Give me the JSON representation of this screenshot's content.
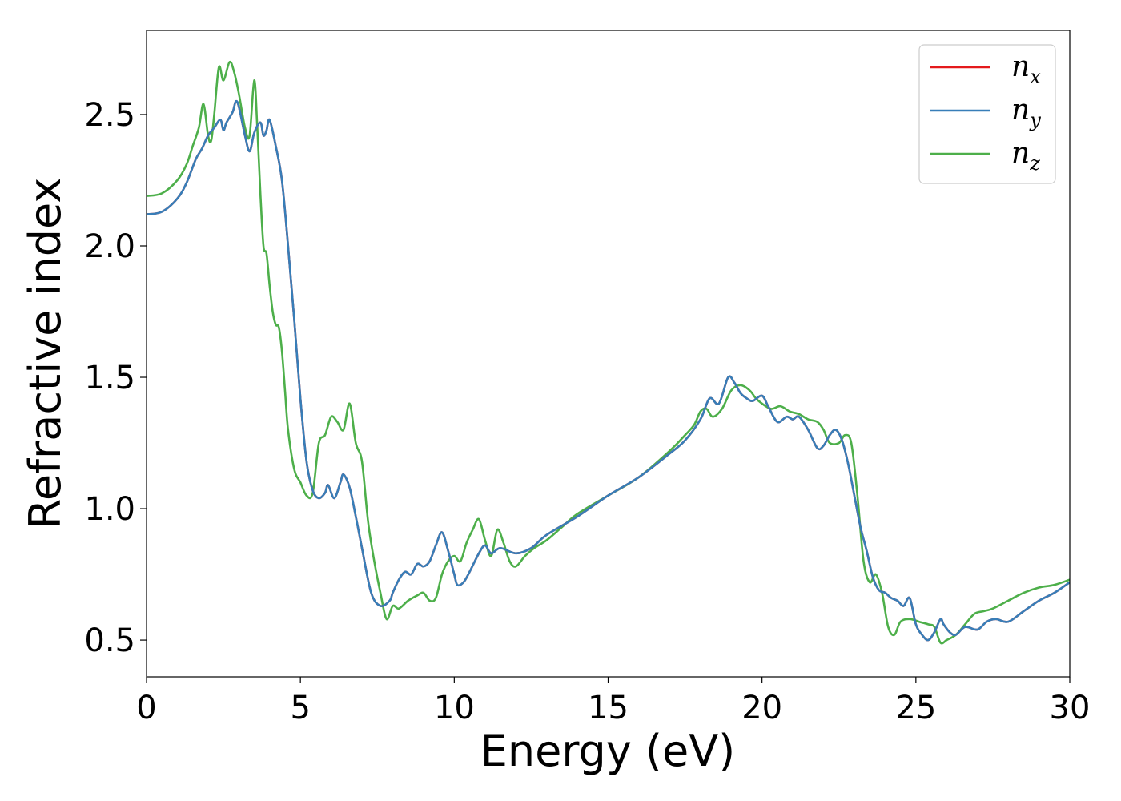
{
  "chart_data": {
    "type": "line",
    "title": "",
    "xlabel": "Energy (eV)",
    "ylabel": "Refractive index",
    "xlim": [
      0,
      30
    ],
    "ylim": [
      0.36,
      2.82
    ],
    "xticks": [
      0,
      5,
      10,
      15,
      20,
      25,
      30
    ],
    "yticks": [
      0.5,
      1.0,
      1.5,
      2.0,
      2.5
    ],
    "ytick_labels": [
      "0.5",
      "1.0",
      "1.5",
      "2.0",
      "2.5"
    ],
    "grid": false,
    "legend_position": "top-right",
    "series": [
      {
        "name": "n",
        "subscript": "x",
        "color": "#e41a1c",
        "x": [
          0,
          0.5,
          1.0,
          1.3,
          1.6,
          1.8,
          2.0,
          2.2,
          2.4,
          2.5,
          2.6,
          2.8,
          2.9,
          3.0,
          3.2,
          3.35,
          3.5,
          3.7,
          3.8,
          3.9,
          4.0,
          4.2,
          4.4,
          4.6,
          4.8,
          5.0,
          5.2,
          5.4,
          5.6,
          5.8,
          5.9,
          6.1,
          6.3,
          6.4,
          6.6,
          6.8,
          7.0,
          7.3,
          7.6,
          7.9,
          8.0,
          8.2,
          8.4,
          8.6,
          8.8,
          9.0,
          9.2,
          9.4,
          9.6,
          9.8,
          10.0,
          10.1,
          10.3,
          10.5,
          10.8,
          11.0,
          11.2,
          11.5,
          12.0,
          12.5,
          13.0,
          14.0,
          15.0,
          16.0,
          17.0,
          17.5,
          18.0,
          18.3,
          18.6,
          18.9,
          19.1,
          19.3,
          19.5,
          19.7,
          20.0,
          20.2,
          20.5,
          20.8,
          21.0,
          21.2,
          21.5,
          21.8,
          22.0,
          22.2,
          22.4,
          22.6,
          22.8,
          23.0,
          23.2,
          23.4,
          23.6,
          23.8,
          24.0,
          24.2,
          24.4,
          24.6,
          24.8,
          25.0,
          25.2,
          25.4,
          25.6,
          25.8,
          25.9,
          26.1,
          26.3,
          26.6,
          27.0,
          27.3,
          27.6,
          28.0,
          28.5,
          29.0,
          29.5,
          30.0
        ],
        "values": [
          2.12,
          2.13,
          2.18,
          2.24,
          2.33,
          2.37,
          2.42,
          2.45,
          2.48,
          2.44,
          2.47,
          2.51,
          2.55,
          2.53,
          2.42,
          2.36,
          2.43,
          2.47,
          2.42,
          2.44,
          2.48,
          2.38,
          2.25,
          2.0,
          1.72,
          1.42,
          1.18,
          1.07,
          1.04,
          1.06,
          1.09,
          1.04,
          1.1,
          1.13,
          1.08,
          0.97,
          0.85,
          0.68,
          0.63,
          0.65,
          0.68,
          0.73,
          0.76,
          0.75,
          0.79,
          0.78,
          0.8,
          0.86,
          0.91,
          0.84,
          0.75,
          0.71,
          0.72,
          0.76,
          0.83,
          0.86,
          0.83,
          0.85,
          0.83,
          0.85,
          0.9,
          0.97,
          1.05,
          1.12,
          1.21,
          1.26,
          1.34,
          1.42,
          1.4,
          1.5,
          1.48,
          1.44,
          1.42,
          1.41,
          1.43,
          1.39,
          1.33,
          1.35,
          1.34,
          1.35,
          1.3,
          1.23,
          1.24,
          1.28,
          1.3,
          1.26,
          1.17,
          1.05,
          0.93,
          0.84,
          0.74,
          0.69,
          0.68,
          0.66,
          0.65,
          0.63,
          0.66,
          0.56,
          0.52,
          0.5,
          0.53,
          0.58,
          0.56,
          0.53,
          0.52,
          0.55,
          0.54,
          0.57,
          0.58,
          0.57,
          0.61,
          0.65,
          0.68,
          0.72
        ]
      },
      {
        "name": "n",
        "subscript": "y",
        "color": "#377eb8",
        "x": [
          0,
          0.5,
          1.0,
          1.3,
          1.6,
          1.8,
          2.0,
          2.2,
          2.4,
          2.5,
          2.6,
          2.8,
          2.9,
          3.0,
          3.2,
          3.35,
          3.5,
          3.7,
          3.8,
          3.9,
          4.0,
          4.2,
          4.4,
          4.6,
          4.8,
          5.0,
          5.2,
          5.4,
          5.6,
          5.8,
          5.9,
          6.1,
          6.3,
          6.4,
          6.6,
          6.8,
          7.0,
          7.3,
          7.6,
          7.9,
          8.0,
          8.2,
          8.4,
          8.6,
          8.8,
          9.0,
          9.2,
          9.4,
          9.6,
          9.8,
          10.0,
          10.1,
          10.3,
          10.5,
          10.8,
          11.0,
          11.2,
          11.5,
          12.0,
          12.5,
          13.0,
          14.0,
          15.0,
          16.0,
          17.0,
          17.5,
          18.0,
          18.3,
          18.6,
          18.9,
          19.1,
          19.3,
          19.5,
          19.7,
          20.0,
          20.2,
          20.5,
          20.8,
          21.0,
          21.2,
          21.5,
          21.8,
          22.0,
          22.2,
          22.4,
          22.6,
          22.8,
          23.0,
          23.2,
          23.4,
          23.6,
          23.8,
          24.0,
          24.2,
          24.4,
          24.6,
          24.8,
          25.0,
          25.2,
          25.4,
          25.6,
          25.8,
          25.9,
          26.1,
          26.3,
          26.6,
          27.0,
          27.3,
          27.6,
          28.0,
          28.5,
          29.0,
          29.5,
          30.0
        ],
        "values": [
          2.12,
          2.13,
          2.18,
          2.24,
          2.33,
          2.37,
          2.42,
          2.45,
          2.48,
          2.44,
          2.47,
          2.51,
          2.55,
          2.53,
          2.42,
          2.36,
          2.43,
          2.47,
          2.42,
          2.44,
          2.48,
          2.38,
          2.25,
          2.0,
          1.72,
          1.42,
          1.18,
          1.07,
          1.04,
          1.06,
          1.09,
          1.04,
          1.1,
          1.13,
          1.08,
          0.97,
          0.85,
          0.68,
          0.63,
          0.65,
          0.68,
          0.73,
          0.76,
          0.75,
          0.79,
          0.78,
          0.8,
          0.86,
          0.91,
          0.84,
          0.75,
          0.71,
          0.72,
          0.76,
          0.83,
          0.86,
          0.83,
          0.85,
          0.83,
          0.85,
          0.9,
          0.97,
          1.05,
          1.12,
          1.21,
          1.26,
          1.34,
          1.42,
          1.4,
          1.5,
          1.48,
          1.44,
          1.42,
          1.41,
          1.43,
          1.39,
          1.33,
          1.35,
          1.34,
          1.35,
          1.3,
          1.23,
          1.24,
          1.28,
          1.3,
          1.26,
          1.17,
          1.05,
          0.93,
          0.84,
          0.74,
          0.69,
          0.68,
          0.66,
          0.65,
          0.63,
          0.66,
          0.56,
          0.52,
          0.5,
          0.53,
          0.58,
          0.56,
          0.53,
          0.52,
          0.55,
          0.54,
          0.57,
          0.58,
          0.57,
          0.61,
          0.65,
          0.68,
          0.72
        ]
      },
      {
        "name": "n",
        "subscript": "z",
        "color": "#4daf4a",
        "x": [
          0,
          0.5,
          1.0,
          1.3,
          1.5,
          1.7,
          1.85,
          2.0,
          2.1,
          2.2,
          2.35,
          2.5,
          2.7,
          2.85,
          3.0,
          3.2,
          3.35,
          3.5,
          3.6,
          3.7,
          3.8,
          3.9,
          4.0,
          4.1,
          4.2,
          4.3,
          4.4,
          4.5,
          4.6,
          4.8,
          5.0,
          5.2,
          5.4,
          5.6,
          5.8,
          6.0,
          6.2,
          6.4,
          6.6,
          6.8,
          7.0,
          7.2,
          7.4,
          7.6,
          7.8,
          8.0,
          8.2,
          8.5,
          8.8,
          9.0,
          9.2,
          9.4,
          9.6,
          9.8,
          10.0,
          10.2,
          10.4,
          10.6,
          10.8,
          11.0,
          11.2,
          11.4,
          11.6,
          11.8,
          12.0,
          12.3,
          12.6,
          13.0,
          13.5,
          14.0,
          15.0,
          16.0,
          17.0,
          17.5,
          17.8,
          18.0,
          18.2,
          18.4,
          18.7,
          19.0,
          19.3,
          19.6,
          19.8,
          20.0,
          20.3,
          20.6,
          20.9,
          21.2,
          21.5,
          21.8,
          22.0,
          22.2,
          22.5,
          22.7,
          22.9,
          23.1,
          23.3,
          23.5,
          23.7,
          23.9,
          24.1,
          24.3,
          24.5,
          24.8,
          25.1,
          25.4,
          25.6,
          25.8,
          26.0,
          26.3,
          26.6,
          26.9,
          27.2,
          27.5,
          28.0,
          28.5,
          29.0,
          29.5,
          30.0
        ],
        "values": [
          2.19,
          2.2,
          2.25,
          2.31,
          2.38,
          2.45,
          2.54,
          2.42,
          2.4,
          2.5,
          2.68,
          2.63,
          2.7,
          2.66,
          2.58,
          2.45,
          2.42,
          2.63,
          2.45,
          2.2,
          2.0,
          1.97,
          1.85,
          1.75,
          1.7,
          1.69,
          1.6,
          1.45,
          1.3,
          1.15,
          1.1,
          1.05,
          1.06,
          1.25,
          1.28,
          1.35,
          1.33,
          1.3,
          1.4,
          1.25,
          1.18,
          0.95,
          0.8,
          0.68,
          0.58,
          0.63,
          0.62,
          0.65,
          0.67,
          0.68,
          0.65,
          0.66,
          0.75,
          0.8,
          0.82,
          0.8,
          0.87,
          0.92,
          0.96,
          0.88,
          0.82,
          0.92,
          0.87,
          0.8,
          0.78,
          0.82,
          0.85,
          0.88,
          0.93,
          0.98,
          1.05,
          1.12,
          1.22,
          1.28,
          1.32,
          1.37,
          1.38,
          1.35,
          1.38,
          1.45,
          1.47,
          1.45,
          1.42,
          1.4,
          1.38,
          1.39,
          1.37,
          1.36,
          1.34,
          1.33,
          1.3,
          1.25,
          1.25,
          1.28,
          1.25,
          1.05,
          0.8,
          0.72,
          0.75,
          0.68,
          0.55,
          0.52,
          0.57,
          0.58,
          0.57,
          0.56,
          0.55,
          0.49,
          0.5,
          0.52,
          0.56,
          0.6,
          0.61,
          0.62,
          0.65,
          0.68,
          0.7,
          0.71,
          0.73
        ]
      }
    ]
  }
}
